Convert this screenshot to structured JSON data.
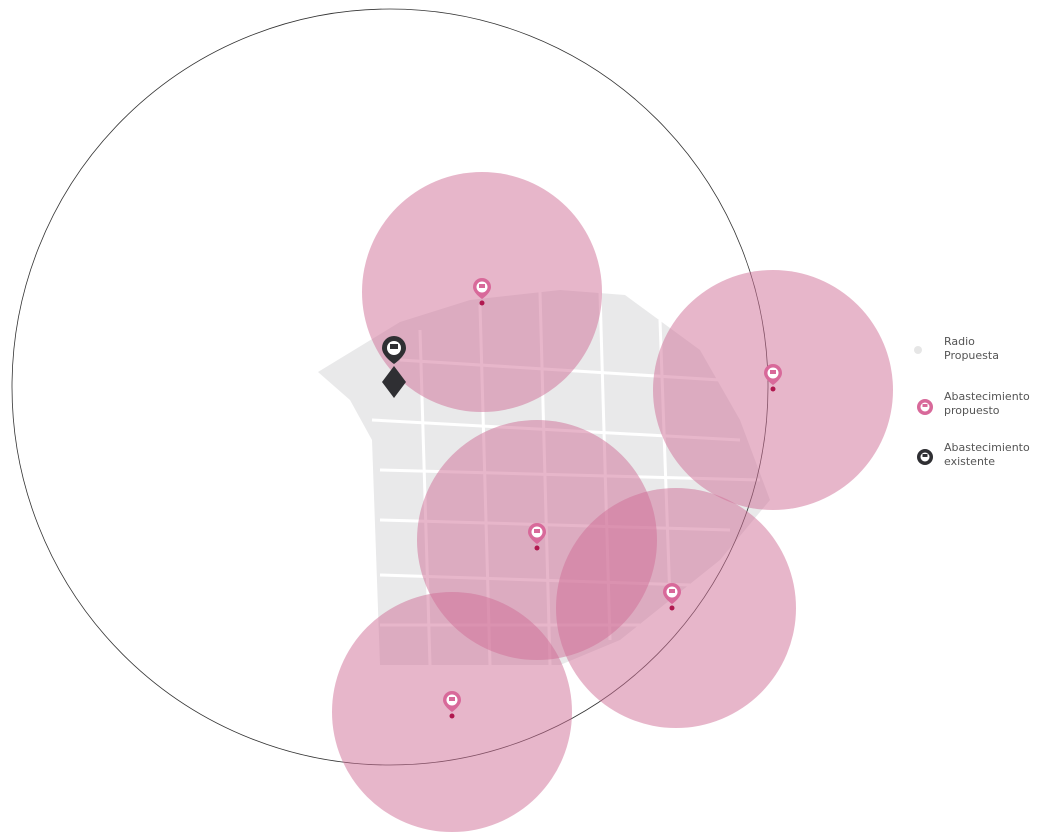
{
  "legend": [
    {
      "label": [
        "Radio",
        "Propuesta"
      ]
    },
    {
      "label": [
        "Abastecimiento",
        "propuesto"
      ]
    },
    {
      "label": [
        "Abastecimiento",
        "existente"
      ]
    }
  ]
}
